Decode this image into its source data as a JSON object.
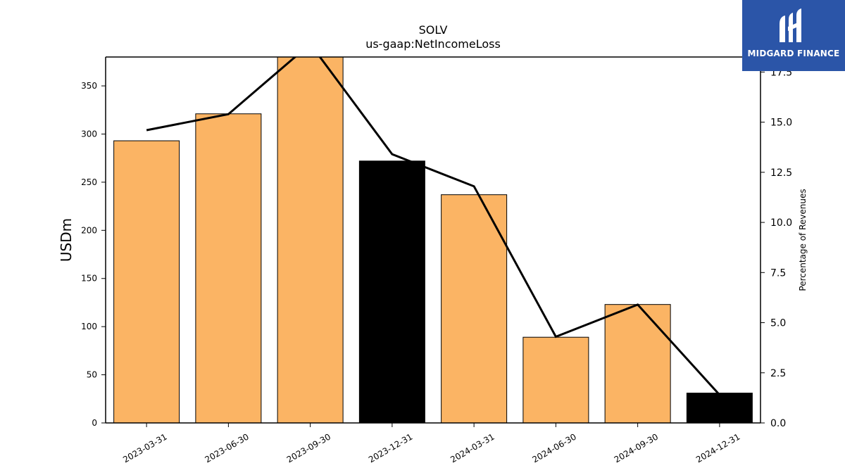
{
  "chart_data": {
    "type": "bar",
    "title": "SOLV",
    "subtitle": "us-gaap:NetIncomeLoss",
    "ylabel": "USDm",
    "y2label": "Percentage of Revenues",
    "categories": [
      "2023-03-31",
      "2023-06-30",
      "2023-09-30",
      "2023-12-31",
      "2024-03-31",
      "2024-06-30",
      "2024-09-30",
      "2024-12-31"
    ],
    "values": [
      293,
      321,
      380,
      272,
      237,
      89,
      123,
      31
    ],
    "bar_colors": [
      "#fbb464",
      "#fbb464",
      "#fbb464",
      "#000000",
      "#fbb464",
      "#fbb464",
      "#fbb464",
      "#000000"
    ],
    "line_series": {
      "axis": "right",
      "values": [
        14.6,
        15.4,
        18.9,
        13.4,
        11.8,
        4.3,
        5.9,
        1.4
      ],
      "color": "#000000"
    },
    "ylim": [
      0,
      380
    ],
    "y2lim": [
      0,
      18.25
    ],
    "yticks": [
      0,
      50,
      100,
      150,
      200,
      250,
      300,
      350
    ],
    "y2ticks": [
      0.0,
      2.5,
      5.0,
      7.5,
      10.0,
      12.5,
      15.0,
      17.5
    ],
    "y2tick_labels": [
      "0.0",
      "2.5",
      "5.0",
      "7.5",
      "10.0",
      "12.5",
      "15.0",
      "17.5"
    ],
    "grid": false,
    "legend": "none"
  },
  "logo": {
    "text": "MIDGARD FINANCE",
    "background": "#2b55a8"
  }
}
